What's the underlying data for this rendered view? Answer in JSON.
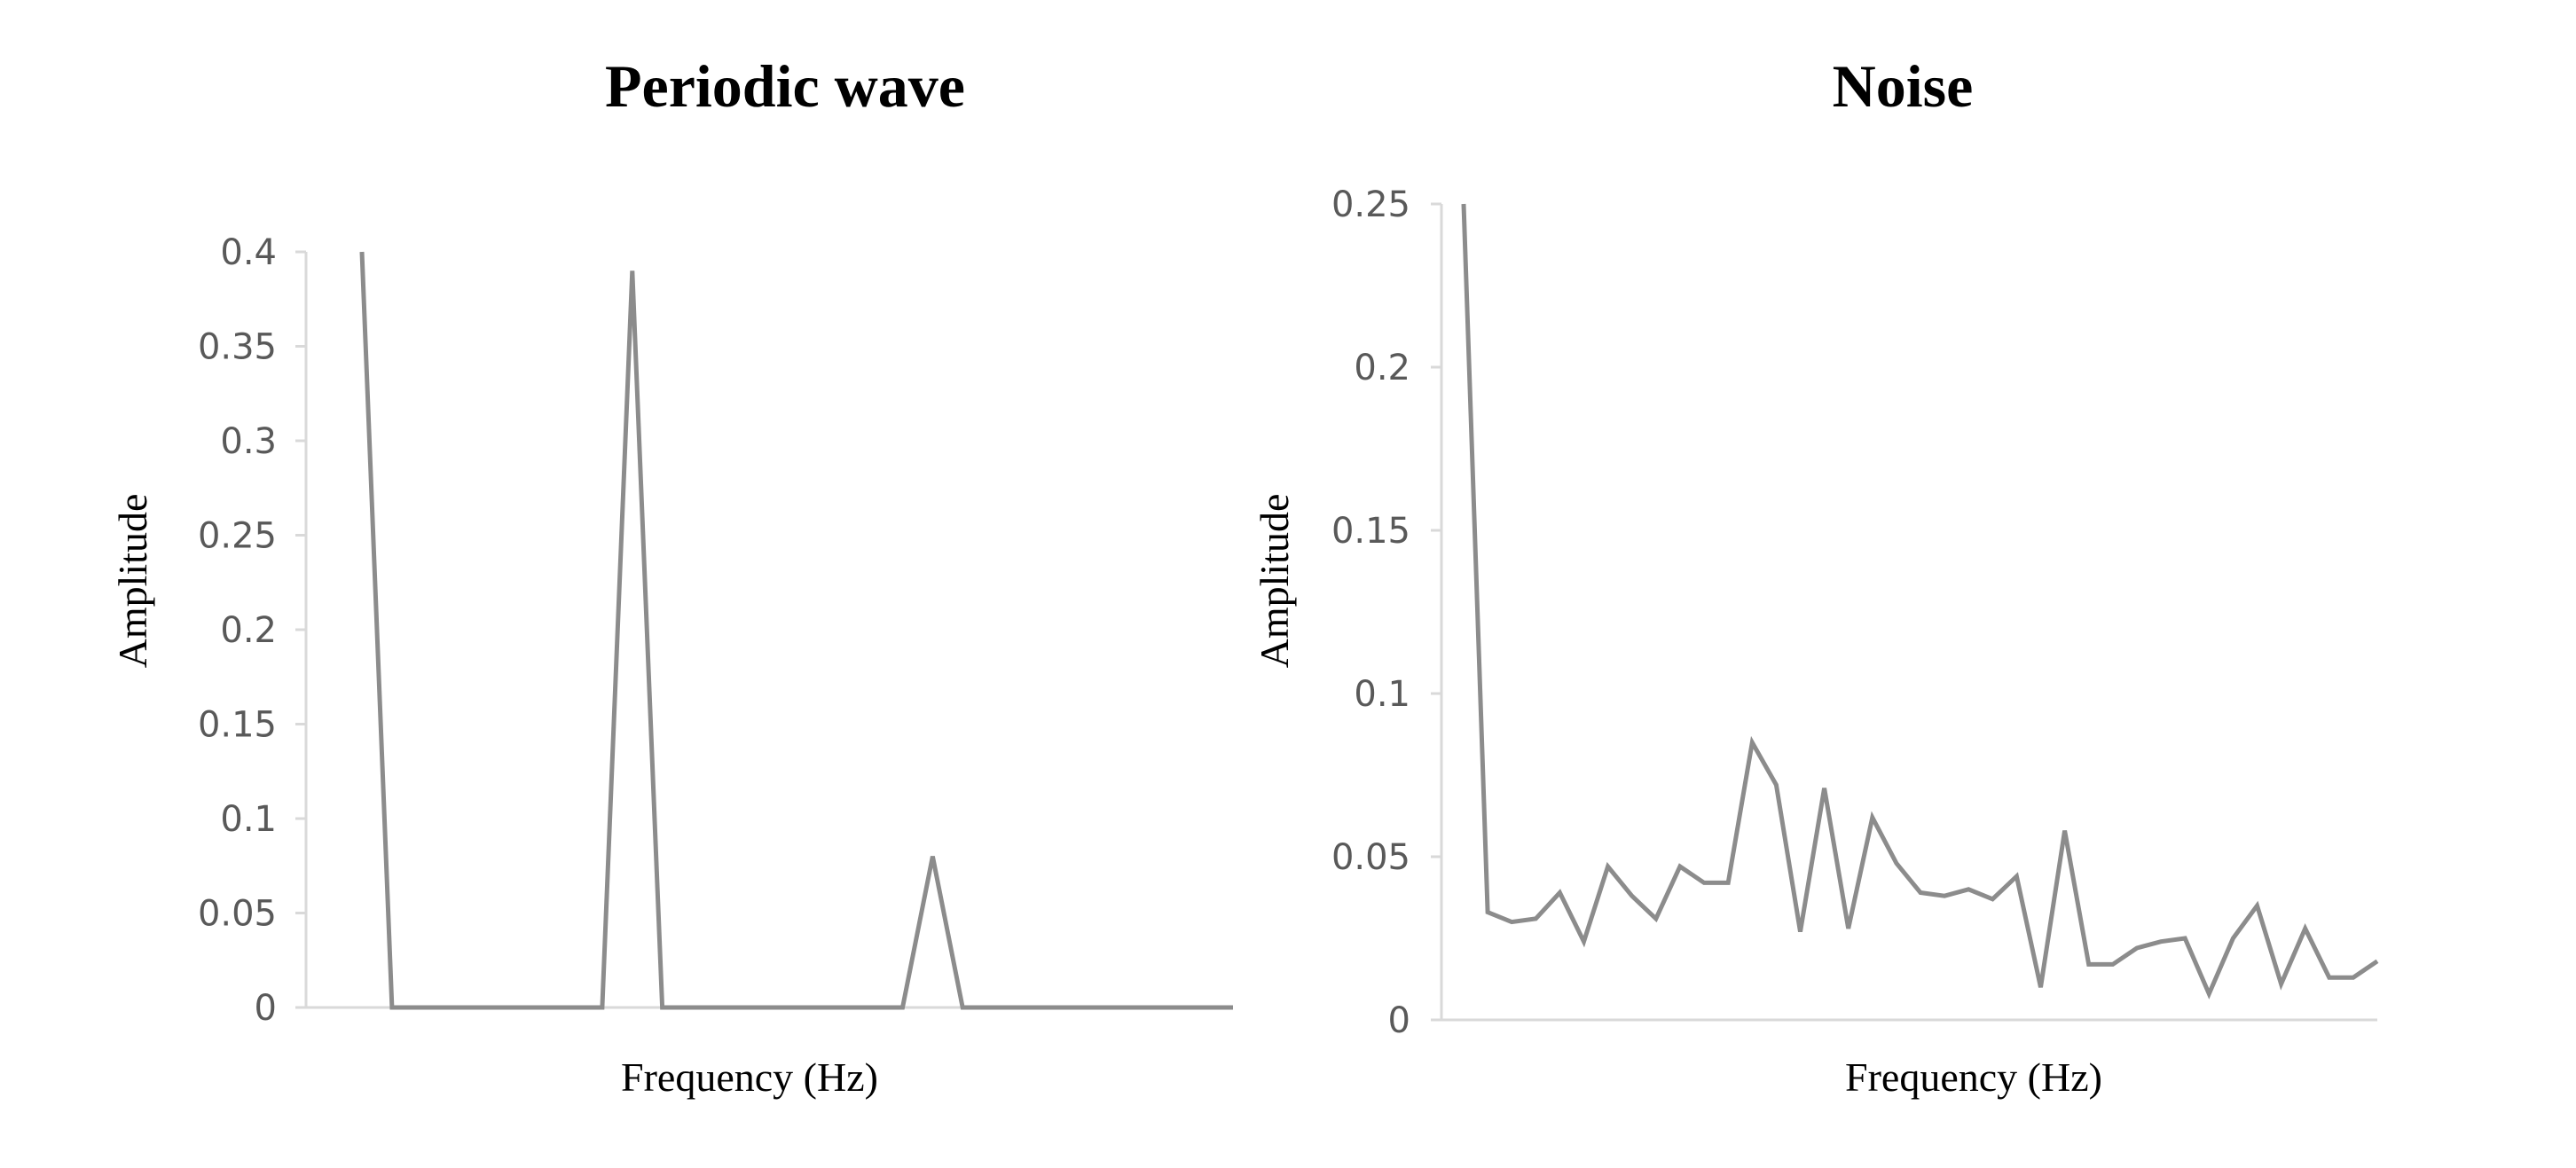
{
  "chart_data": [
    {
      "type": "line",
      "title": "Periodic wave",
      "xlabel": "Frequency (Hz)",
      "ylabel": "Amplitude",
      "ylim": [
        0,
        0.4
      ],
      "yticks": [
        "0",
        "0.05",
        "0.1",
        "0.15",
        "0.2",
        "0.25",
        "0.3",
        "0.35",
        "0.4"
      ],
      "ytick_values": [
        0,
        0.05,
        0.1,
        0.15,
        0.2,
        0.25,
        0.3,
        0.35,
        0.4
      ],
      "grid": false,
      "line_color": "#8c8c8c",
      "series": [
        {
          "values": [
            0.4,
            0,
            0,
            0,
            0,
            0,
            0,
            0,
            0,
            0.39,
            0,
            0,
            0,
            0,
            0,
            0,
            0,
            0,
            0,
            0.08,
            0,
            0,
            0,
            0,
            0,
            0,
            0,
            0,
            0,
            0
          ]
        }
      ]
    },
    {
      "type": "line",
      "title": "Noise",
      "xlabel": "Frequency (Hz)",
      "ylabel": "Amplitude",
      "ylim": [
        0,
        0.25
      ],
      "yticks": [
        "0",
        "0.05",
        "0.1",
        "0.15",
        "0.2",
        "0.25"
      ],
      "ytick_values": [
        0,
        0.05,
        0.1,
        0.15,
        0.2,
        0.25
      ],
      "grid": false,
      "line_color": "#8c8c8c",
      "series": [
        {
          "values": [
            0.25,
            0.033,
            0.03,
            0.031,
            0.039,
            0.024,
            0.047,
            0.038,
            0.031,
            0.047,
            0.042,
            0.042,
            0.085,
            0.072,
            0.027,
            0.071,
            0.028,
            0.062,
            0.048,
            0.039,
            0.038,
            0.04,
            0.037,
            0.044,
            0.01,
            0.058,
            0.017,
            0.017,
            0.022,
            0.024,
            0.025,
            0.008,
            0.025,
            0.035,
            0.011,
            0.028,
            0.013,
            0.013,
            0.018
          ]
        }
      ]
    }
  ]
}
